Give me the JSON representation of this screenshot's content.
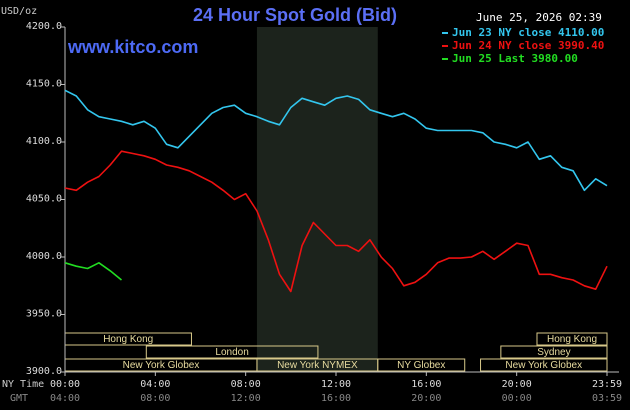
{
  "chart_data": {
    "type": "line",
    "title": "24 Hour Spot Gold (Bid)",
    "timestamp": "June 25, 2026 02:39",
    "watermark": "www.kitco.com",
    "y_label": "USD/oz",
    "x_label": "NY Time",
    "x2_label": "GMT",
    "background": "#000000",
    "grid": false,
    "legend_position": "top-right",
    "xlim": [
      0,
      24
    ],
    "ylim": [
      3900,
      4200
    ],
    "yticks": [
      {
        "value": 3900,
        "label": "3900.0"
      },
      {
        "value": 3950,
        "label": "3950.0"
      },
      {
        "value": 4000,
        "label": "4000.0"
      },
      {
        "value": 4050,
        "label": "4050.0"
      },
      {
        "value": 4100,
        "label": "4100.0"
      },
      {
        "value": 4150,
        "label": "4150.0"
      },
      {
        "value": 4200,
        "label": "4200.0"
      }
    ],
    "xticks": [
      {
        "value": 0,
        "label": "00:00"
      },
      {
        "value": 4,
        "label": "04:00"
      },
      {
        "value": 8,
        "label": "08:00"
      },
      {
        "value": 12,
        "label": "12:00"
      },
      {
        "value": 16,
        "label": "16:00"
      },
      {
        "value": 20,
        "label": "20:00"
      },
      {
        "value": 24,
        "label": "23:59"
      }
    ],
    "x2ticks": [
      {
        "value": 0,
        "label": "04:00"
      },
      {
        "value": 4,
        "label": "08:00"
      },
      {
        "value": 8,
        "label": "12:00"
      },
      {
        "value": 12,
        "label": "16:00"
      },
      {
        "value": 16,
        "label": "20:00"
      },
      {
        "value": 20,
        "label": "00:00"
      },
      {
        "value": 24,
        "label": "03:59"
      }
    ],
    "shaded_band": [
      8.5,
      13.85
    ],
    "sessions": [
      {
        "label": "Hong Kong",
        "start": 0,
        "end": 5.6,
        "row": 0
      },
      {
        "label": "London",
        "start": 3.6,
        "end": 11.2,
        "row": 1
      },
      {
        "label": "New York Globex",
        "start": 0,
        "end": 8.5,
        "row": 2
      },
      {
        "label": "New York NYMEX",
        "start": 8.5,
        "end": 13.85,
        "row": 2
      },
      {
        "label": "NY Globex",
        "start": 13.85,
        "end": 17.7,
        "row": 2
      },
      {
        "label": "Hong Kong",
        "start": 20.9,
        "end": 24,
        "row": 0
      },
      {
        "label": "Sydney",
        "start": 19.3,
        "end": 24,
        "row": 1
      },
      {
        "label": "New York Globex",
        "start": 18.4,
        "end": 24,
        "row": 2
      }
    ],
    "x": [
      0,
      0.5,
      1,
      1.5,
      2,
      2.5,
      3,
      3.5,
      4,
      4.5,
      5,
      5.5,
      6,
      6.5,
      7,
      7.5,
      8,
      8.5,
      9,
      9.5,
      10,
      10.5,
      11,
      11.5,
      12,
      12.5,
      13,
      13.5,
      14,
      14.5,
      15,
      15.5,
      16,
      16.5,
      17,
      17.5,
      18,
      18.5,
      19,
      19.5,
      20,
      20.5,
      21,
      21.5,
      22,
      22.5,
      23,
      23.5,
      24
    ],
    "series": [
      {
        "name": "Jun 23 NY close 4110.00",
        "color": "#33c6ee",
        "values": [
          4145,
          4140,
          4128,
          4122,
          4120,
          4118,
          4115,
          4118,
          4112,
          4098,
          4095,
          4105,
          4115,
          4125,
          4130,
          4132,
          4125,
          4122,
          4118,
          4115,
          4130,
          4138,
          4135,
          4132,
          4138,
          4140,
          4137,
          4128,
          4125,
          4122,
          4125,
          4120,
          4112,
          4110,
          4110,
          4110,
          4110,
          4108,
          4100,
          4098,
          4095,
          4100,
          4085,
          4088,
          4078,
          4075,
          4058,
          4068,
          4062
        ]
      },
      {
        "name": "Jun 24 NY close 3990.40",
        "color": "#ee1111",
        "values": [
          4060,
          4058,
          4065,
          4070,
          4080,
          4092,
          4090,
          4088,
          4085,
          4080,
          4078,
          4075,
          4070,
          4065,
          4058,
          4050,
          4055,
          4040,
          4015,
          3985,
          3970,
          4010,
          4030,
          4020,
          4010,
          4010,
          4005,
          4015,
          4000,
          3990,
          3975,
          3978,
          3985,
          3995,
          3999,
          3999,
          4000,
          4005,
          3998,
          4005,
          4012,
          4010,
          3985,
          3985,
          3982,
          3980,
          3975,
          3972,
          3992
        ]
      },
      {
        "name": "Jun 25 Last 3980.00",
        "color": "#22dd22",
        "values": [
          3995,
          3992,
          3990,
          3995,
          3988,
          3980,
          null,
          null,
          null,
          null,
          null,
          null,
          null,
          null,
          null,
          null,
          null,
          null,
          null,
          null,
          null,
          null,
          null,
          null,
          null,
          null,
          null,
          null,
          null,
          null,
          null,
          null,
          null,
          null,
          null,
          null,
          null,
          null,
          null,
          null,
          null,
          null,
          null,
          null,
          null,
          null,
          null,
          null,
          null
        ]
      }
    ]
  }
}
